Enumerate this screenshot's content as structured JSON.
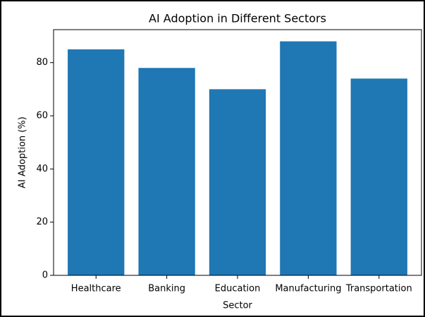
{
  "chart_data": {
    "type": "bar",
    "title": "AI Adoption in Different Sectors",
    "x_label": "Sector",
    "y_label": "AI Adoption (%)",
    "categories": [
      "Healthcare",
      "Banking",
      "Education",
      "Manufacturing",
      "Transportation"
    ],
    "values": [
      85,
      78,
      70,
      88,
      74
    ],
    "color": "#1f77b4",
    "ylim": [
      0,
      92.4
    ],
    "yticks": [
      0,
      20,
      40,
      60,
      80
    ],
    "grid": false
  }
}
